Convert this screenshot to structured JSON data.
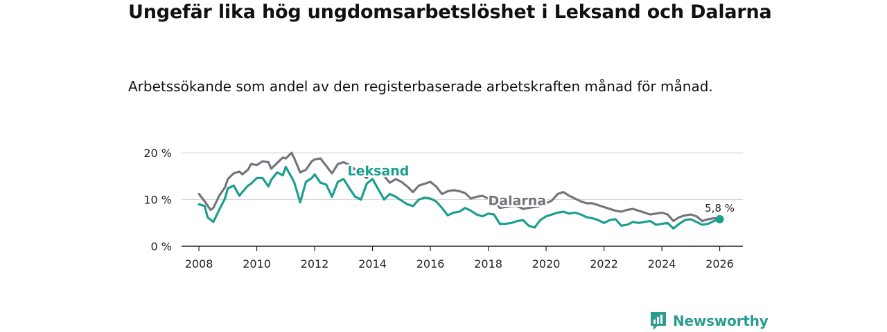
{
  "title": "Ungefär lika hög ungdomsarbetslöshet i Leksand och Dalarna",
  "subtitle": "Arbetssökande som andel av den registerbaserade arbetskraften månad för månad.",
  "brand": {
    "name": "Newsworthy",
    "color": "#2a9d8f",
    "icon": "newsworthy-logo-icon"
  },
  "colors": {
    "leksand": "#1a9e8f",
    "dalarna": "#76747a",
    "grid": "#d6d6d6",
    "axis": "#222222",
    "text": "#222222"
  },
  "chart_data": {
    "type": "line",
    "title": "Ungefär lika hög ungdomsarbetslöshet i Leksand och Dalarna",
    "xlabel": "",
    "ylabel": "",
    "xlim": [
      2007.4,
      2026.8
    ],
    "ylim": [
      0,
      20
    ],
    "x_ticks": [
      2008,
      2010,
      2012,
      2014,
      2016,
      2018,
      2020,
      2022,
      2024,
      2026
    ],
    "x_tick_labels": [
      "2008",
      "2010",
      "2012",
      "2014",
      "2016",
      "2018",
      "2020",
      "2022",
      "2024",
      "2026"
    ],
    "y_ticks": [
      0,
      10,
      20
    ],
    "y_tick_labels": [
      "0 %",
      "10 %",
      "20 %"
    ],
    "grid": true,
    "series": [
      {
        "name": "Dalarna",
        "label": "Dalarna",
        "color": "#76747a",
        "x": [
          2008.0,
          2008.2,
          2008.4,
          2008.5,
          2008.7,
          2008.9,
          2009.0,
          2009.2,
          2009.4,
          2009.5,
          2009.7,
          2009.8,
          2010.0,
          2010.2,
          2010.4,
          2010.5,
          2010.7,
          2010.9,
          2011.0,
          2011.2,
          2011.3,
          2011.5,
          2011.7,
          2011.9,
          2012.0,
          2012.2,
          2012.4,
          2012.6,
          2012.8,
          2013.0,
          2013.2,
          2013.4,
          2013.6,
          2013.8,
          2014.0,
          2014.2,
          2014.4,
          2014.6,
          2014.8,
          2015.0,
          2015.2,
          2015.4,
          2015.6,
          2015.8,
          2016.0,
          2016.2,
          2016.4,
          2016.6,
          2016.8,
          2017.0,
          2017.2,
          2017.4,
          2017.6,
          2017.8,
          2018.0,
          2018.2,
          2018.4,
          2018.6,
          2018.8,
          2019.0,
          2019.2,
          2019.4,
          2019.6,
          2019.8,
          2020.0,
          2020.2,
          2020.4,
          2020.6,
          2020.8,
          2021.0,
          2021.2,
          2021.4,
          2021.6,
          2021.8,
          2022.0,
          2022.2,
          2022.4,
          2022.6,
          2022.8,
          2023.0,
          2023.2,
          2023.4,
          2023.6,
          2023.8,
          2024.0,
          2024.2,
          2024.4,
          2024.6,
          2024.8,
          2025.0,
          2025.2,
          2025.4,
          2025.6,
          2025.8,
          2026.0
        ],
        "values": [
          11.2,
          9.6,
          7.8,
          8.2,
          10.8,
          12.6,
          14.4,
          15.6,
          16.0,
          15.4,
          16.4,
          17.6,
          17.4,
          18.2,
          18.0,
          16.6,
          17.8,
          19.0,
          18.8,
          20.0,
          18.8,
          15.8,
          16.4,
          18.2,
          18.6,
          18.8,
          17.2,
          15.6,
          17.6,
          18.0,
          17.4,
          16.4,
          15.6,
          14.6,
          16.6,
          16.2,
          15.0,
          13.6,
          14.4,
          13.8,
          12.8,
          11.6,
          13.0,
          13.4,
          13.8,
          12.8,
          11.2,
          11.8,
          12.0,
          11.8,
          11.4,
          10.2,
          10.6,
          10.8,
          10.2,
          9.8,
          8.2,
          8.4,
          8.6,
          8.6,
          8.0,
          8.2,
          8.4,
          8.6,
          9.2,
          9.8,
          11.2,
          11.6,
          10.8,
          10.2,
          9.6,
          9.2,
          9.2,
          8.8,
          8.4,
          8.0,
          7.6,
          7.4,
          7.8,
          8.0,
          7.6,
          7.2,
          6.8,
          7.0,
          7.2,
          6.8,
          5.4,
          6.2,
          6.6,
          6.8,
          6.4,
          5.4,
          5.8,
          6.0,
          5.8
        ],
        "label_text": "Dalarna"
      },
      {
        "name": "Leksand",
        "label": "Leksand",
        "color": "#1a9e8f",
        "x": [
          2008.0,
          2008.2,
          2008.3,
          2008.5,
          2008.7,
          2008.9,
          2009.0,
          2009.2,
          2009.4,
          2009.5,
          2009.7,
          2009.8,
          2010.0,
          2010.2,
          2010.4,
          2010.5,
          2010.7,
          2010.9,
          2011.0,
          2011.2,
          2011.3,
          2011.5,
          2011.7,
          2011.9,
          2012.0,
          2012.2,
          2012.4,
          2012.6,
          2012.8,
          2013.0,
          2013.2,
          2013.4,
          2013.6,
          2013.8,
          2014.0,
          2014.2,
          2014.4,
          2014.6,
          2014.8,
          2015.0,
          2015.2,
          2015.4,
          2015.6,
          2015.8,
          2016.0,
          2016.2,
          2016.4,
          2016.6,
          2016.8,
          2017.0,
          2017.2,
          2017.4,
          2017.6,
          2017.8,
          2018.0,
          2018.2,
          2018.4,
          2018.6,
          2018.8,
          2019.0,
          2019.2,
          2019.4,
          2019.6,
          2019.8,
          2020.0,
          2020.2,
          2020.4,
          2020.6,
          2020.8,
          2021.0,
          2021.2,
          2021.4,
          2021.6,
          2021.8,
          2022.0,
          2022.2,
          2022.4,
          2022.6,
          2022.8,
          2023.0,
          2023.2,
          2023.4,
          2023.6,
          2023.8,
          2024.0,
          2024.2,
          2024.4,
          2024.6,
          2024.8,
          2025.0,
          2025.2,
          2025.4,
          2025.6,
          2025.8,
          2026.0
        ],
        "values": [
          9.0,
          8.6,
          6.2,
          5.2,
          7.8,
          10.2,
          12.4,
          13.0,
          10.8,
          11.6,
          13.0,
          13.4,
          14.6,
          14.6,
          12.8,
          14.2,
          15.8,
          15.2,
          17.0,
          14.8,
          13.6,
          9.4,
          13.8,
          14.6,
          15.4,
          13.6,
          13.2,
          10.6,
          13.8,
          14.4,
          12.4,
          10.6,
          10.0,
          13.4,
          14.4,
          12.2,
          10.0,
          11.2,
          10.6,
          9.8,
          9.0,
          8.6,
          10.0,
          10.4,
          10.2,
          9.6,
          8.2,
          6.6,
          7.2,
          7.4,
          8.2,
          7.6,
          6.8,
          6.4,
          7.0,
          6.8,
          4.8,
          4.8,
          5.0,
          5.4,
          5.6,
          4.4,
          4.0,
          5.6,
          6.4,
          6.8,
          7.2,
          7.4,
          7.0,
          7.2,
          6.8,
          6.2,
          6.0,
          5.6,
          5.0,
          5.6,
          5.8,
          4.4,
          4.6,
          5.2,
          5.0,
          5.2,
          5.4,
          4.6,
          4.8,
          5.0,
          3.8,
          4.8,
          5.6,
          5.8,
          5.2,
          4.6,
          4.8,
          5.4,
          5.8
        ],
        "label_text": "Leksand"
      }
    ],
    "annotations": [
      {
        "series": "Leksand",
        "x": 2026.0,
        "y": 5.8,
        "text": "5,8 %"
      }
    ]
  }
}
